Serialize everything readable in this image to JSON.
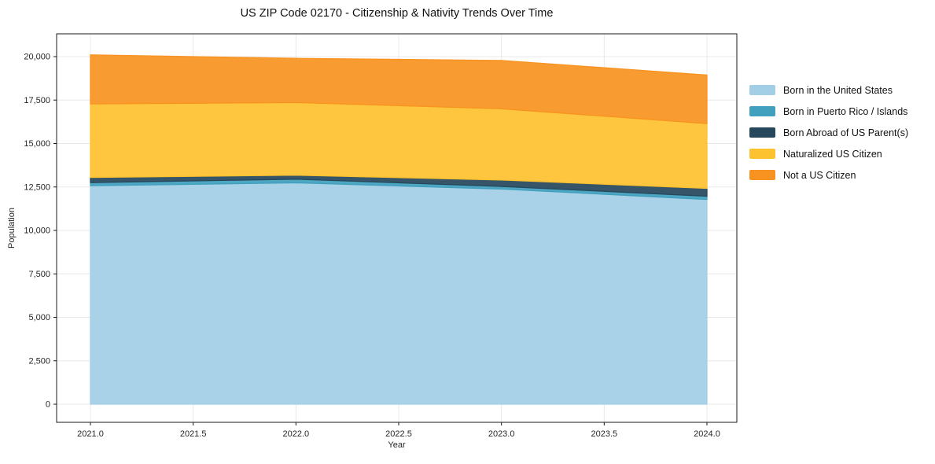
{
  "title": "US ZIP Code 02170 - Citizenship & Nativity Trends Over Time",
  "chart_data": {
    "type": "area",
    "stacked": true,
    "title": "US ZIP Code 02170 - Citizenship & Nativity Trends Over Time",
    "xlabel": "Year",
    "ylabel": "Population",
    "grid": true,
    "legend_position": "right",
    "xlim": [
      2021.0,
      2024.0
    ],
    "ylim": [
      0,
      20000
    ],
    "x": [
      2021,
      2022,
      2023,
      2024
    ],
    "x_ticks": [
      2021.0,
      2021.5,
      2022.0,
      2022.5,
      2023.0,
      2023.5,
      2024.0
    ],
    "x_tick_labels": [
      "2021.0",
      "2021.5",
      "2022.0",
      "2022.5",
      "2023.0",
      "2023.5",
      "2024.0"
    ],
    "y_ticks": [
      0,
      2500,
      5000,
      7500,
      10000,
      12500,
      15000,
      17500,
      20000
    ],
    "y_tick_labels": [
      "0",
      "2,500",
      "5,000",
      "7,500",
      "10,000",
      "12,500",
      "15,000",
      "17,500",
      "20,000"
    ],
    "series": [
      {
        "name": "Born in the United States",
        "color": "#a3cfe6",
        "values": [
          12570,
          12740,
          12380,
          11780
        ]
      },
      {
        "name": "Born in Puerto Rico / Islands",
        "color": "#41a0bd",
        "values": [
          180,
          210,
          150,
          190
        ]
      },
      {
        "name": "Born Abroad of US Parent(s)",
        "color": "#27485c",
        "values": [
          300,
          230,
          370,
          450
        ]
      },
      {
        "name": "Naturalized US Citizen",
        "color": "#fdc22f",
        "values": [
          4230,
          4180,
          4100,
          3730
        ]
      },
      {
        "name": "Not a US Citizen",
        "color": "#f89321",
        "values": [
          2820,
          2540,
          2780,
          2790
        ]
      }
    ],
    "stack_totals": [
      20100,
      19900,
      19780,
      18940
    ]
  }
}
